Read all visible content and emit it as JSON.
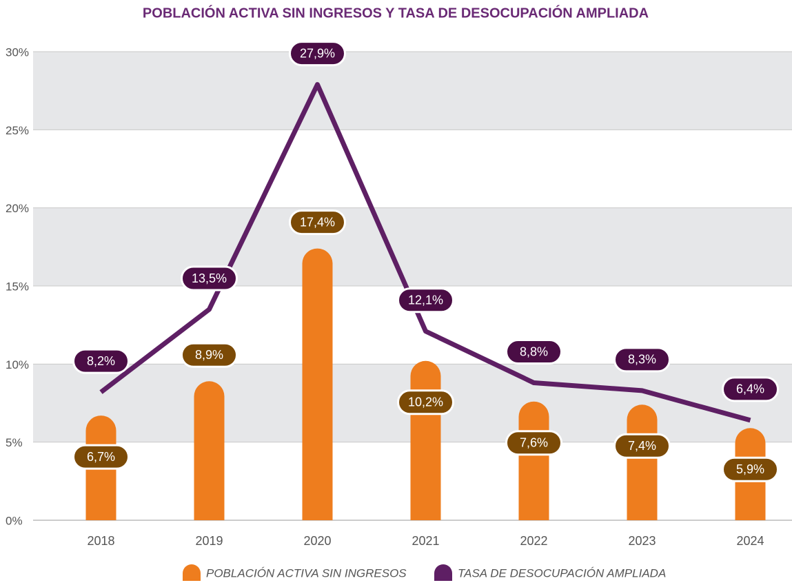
{
  "chart_data": {
    "type": "bar-line",
    "title": "POBLACIÓN ACTIVA SIN INGRESOS Y TASA DE DESOCUPACIÓN AMPLIADA",
    "categories": [
      "2018",
      "2019",
      "2020",
      "2021",
      "2022",
      "2023",
      "2024"
    ],
    "series": [
      {
        "name": "POBLACIÓN ACTIVA SIN INGRESOS",
        "type": "bar",
        "color": "#ee7d1e",
        "label_color": "#7b4a06",
        "values": [
          6.7,
          8.9,
          17.4,
          10.2,
          7.6,
          7.4,
          5.9
        ],
        "value_labels": [
          "6,7%",
          "8,9%",
          "17,4%",
          "10,2%",
          "7,6%",
          "7,4%",
          "5,9%"
        ]
      },
      {
        "name": "TASA DE DESOCUPACIÓN AMPLIADA",
        "type": "line",
        "color": "#5e1f64",
        "label_color": "#4a0d45",
        "values": [
          8.2,
          13.5,
          27.9,
          12.1,
          8.8,
          8.3,
          6.4
        ],
        "value_labels": [
          "8,2%",
          "13,5%",
          "27,9%",
          "12,1%",
          "8,8%",
          "8,3%",
          "6,4%"
        ]
      }
    ],
    "ylim": [
      0,
      30
    ],
    "yticks": [
      {
        "value": 0,
        "label": "0%"
      },
      {
        "value": 5,
        "label": "5%"
      },
      {
        "value": 10,
        "label": "10%"
      },
      {
        "value": 15,
        "label": "15%"
      },
      {
        "value": 20,
        "label": "20%"
      },
      {
        "value": 25,
        "label": "25%"
      },
      {
        "value": 30,
        "label": "30%"
      }
    ],
    "grid": true,
    "legend": "bottom"
  }
}
